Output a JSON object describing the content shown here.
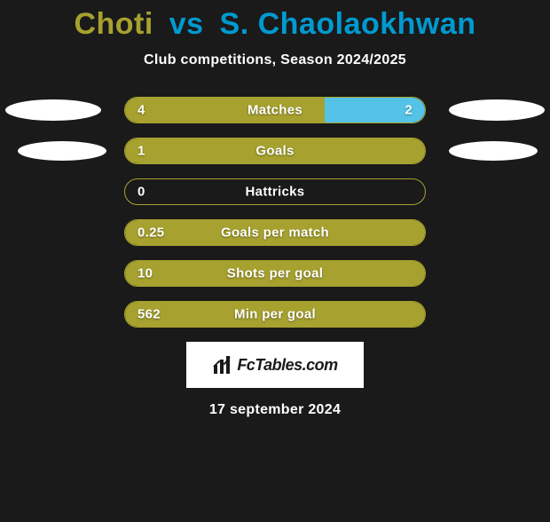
{
  "title": {
    "player_a": "Choti",
    "vs": "vs",
    "player_b": "S. Chaolaokhwan",
    "color_a": "#a7a12f",
    "color_vs": "#009ad0",
    "color_b": "#009ad0"
  },
  "subtitle": "Club competitions, Season 2024/2025",
  "rows": [
    {
      "label": "Matches",
      "value_a": "4",
      "value_b": "2",
      "pct_a": 66.7,
      "pct_b": 33.3,
      "show_ellipse_left": true,
      "show_ellipse_right": true,
      "ellipse_size": "normal"
    },
    {
      "label": "Goals",
      "value_a": "1",
      "value_b": "",
      "pct_a": 100,
      "pct_b": 0,
      "show_ellipse_left": true,
      "show_ellipse_right": true,
      "ellipse_size": "small"
    },
    {
      "label": "Hattricks",
      "value_a": "0",
      "value_b": "",
      "pct_a": 0,
      "pct_b": 0,
      "show_ellipse_left": false,
      "show_ellipse_right": false,
      "ellipse_size": "normal"
    },
    {
      "label": "Goals per match",
      "value_a": "0.25",
      "value_b": "",
      "pct_a": 100,
      "pct_b": 0,
      "show_ellipse_left": false,
      "show_ellipse_right": false,
      "ellipse_size": "normal"
    },
    {
      "label": "Shots per goal",
      "value_a": "10",
      "value_b": "",
      "pct_a": 100,
      "pct_b": 0,
      "show_ellipse_left": false,
      "show_ellipse_right": false,
      "ellipse_size": "normal"
    },
    {
      "label": "Min per goal",
      "value_a": "562",
      "value_b": "",
      "pct_a": 100,
      "pct_b": 0,
      "show_ellipse_left": false,
      "show_ellipse_right": false,
      "ellipse_size": "normal"
    }
  ],
  "chart_style": {
    "color_a": "#a7a12f",
    "color_b": "#54c3e7",
    "border_color": "#a7a12f",
    "track_bg": "transparent",
    "ellipse_color": "#ffffff",
    "text_color": "#ffffff",
    "background": "#1a1a1a"
  },
  "logo": {
    "text": "FcTables.com"
  },
  "date": "17 september 2024"
}
